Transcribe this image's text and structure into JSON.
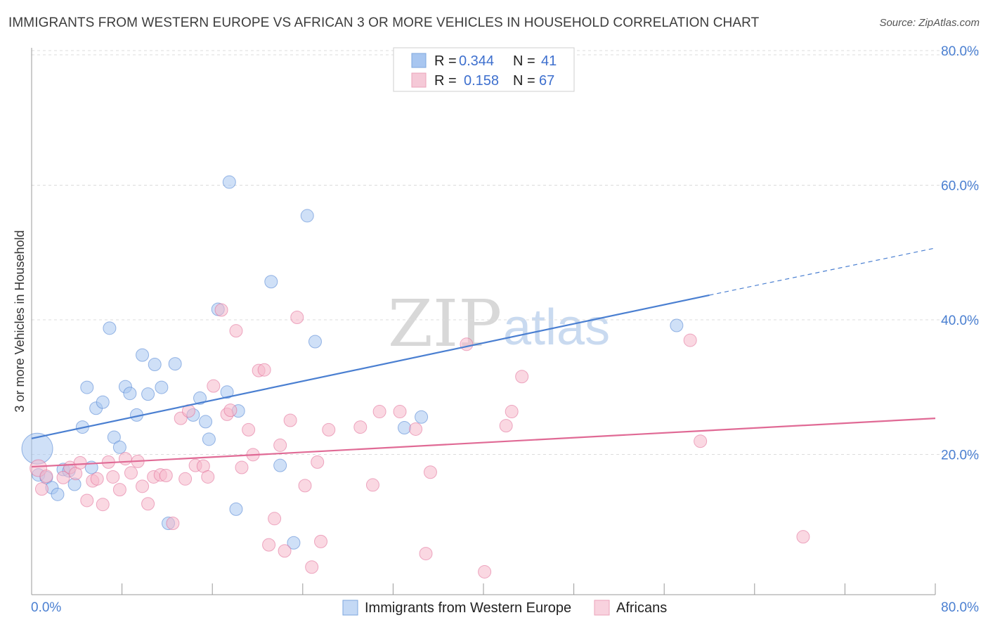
{
  "header": {
    "title": "IMMIGRANTS FROM WESTERN EUROPE VS AFRICAN 3 OR MORE VEHICLES IN HOUSEHOLD CORRELATION CHART",
    "source": "Source: ZipAtlas.com"
  },
  "watermark": {
    "zip": "ZIP",
    "atlas": "atlas"
  },
  "legend": {
    "rows": [
      {
        "r_label": "R =",
        "r_value": "0.344",
        "n_label": "N =",
        "n_value": "41",
        "color": "#a8c6f0"
      },
      {
        "r_label": "R =",
        "r_value": "0.158",
        "n_label": "N =",
        "n_value": "67",
        "color": "#f5b8cb"
      }
    ]
  },
  "bottom_legend": {
    "items": [
      {
        "label": "Immigrants from Western Europe",
        "color": "#a8c6f0"
      },
      {
        "label": "Africans",
        "color": "#f5b8cb"
      }
    ]
  },
  "chart_data": {
    "type": "scatter",
    "title": "IMMIGRANTS FROM WESTERN EUROPE VS AFRICAN 3 OR MORE VEHICLES IN HOUSEHOLD CORRELATION CHART",
    "xlabel": "",
    "ylabel": "3 or more Vehicles in Household",
    "xlim": [
      0,
      80
    ],
    "ylim": [
      0,
      80
    ],
    "x_tick_labels": [
      "0.0%",
      "80.0%"
    ],
    "y_ticks": [
      20,
      40,
      60,
      80
    ],
    "y_tick_labels": [
      "20.0%",
      "40.0%",
      "60.0%",
      "80.0%"
    ],
    "grid": true,
    "legend_position": "top-center",
    "series": [
      {
        "name": "Immigrants from Western Europe",
        "color": "#4a7fd1",
        "marker_fill": "#a8c6f0",
        "trend": {
          "x0": 0,
          "y0": 23.2,
          "x1": 60,
          "y1": 44.5,
          "dash_to_x": 80,
          "dash_to_y": 51.5
        },
        "points": [
          [
            0.5,
            21.7,
            22
          ],
          [
            0.6,
            17.8,
            9
          ],
          [
            1.3,
            17.4,
            9
          ],
          [
            1.8,
            15.9,
            9
          ],
          [
            2.3,
            14.9,
            9
          ],
          [
            2.8,
            18.6,
            9
          ],
          [
            3.3,
            18.4,
            9
          ],
          [
            3.8,
            16.4,
            9
          ],
          [
            4.5,
            24.9,
            9
          ],
          [
            4.9,
            30.8,
            9
          ],
          [
            5.3,
            18.9,
            9
          ],
          [
            5.7,
            27.7,
            9
          ],
          [
            6.3,
            28.6,
            9
          ],
          [
            6.9,
            39.6,
            9
          ],
          [
            7.3,
            23.4,
            9
          ],
          [
            7.8,
            21.9,
            9
          ],
          [
            8.3,
            30.9,
            9
          ],
          [
            8.7,
            29.9,
            9
          ],
          [
            9.3,
            26.7,
            9
          ],
          [
            9.8,
            35.6,
            9
          ],
          [
            10.3,
            29.8,
            9
          ],
          [
            10.9,
            34.2,
            9
          ],
          [
            11.5,
            30.8,
            9
          ],
          [
            12.1,
            10.6,
            9
          ],
          [
            12.7,
            34.3,
            9
          ],
          [
            14.3,
            26.7,
            9
          ],
          [
            14.9,
            29.2,
            9
          ],
          [
            15.4,
            25.7,
            9
          ],
          [
            15.7,
            23.1,
            9
          ],
          [
            16.5,
            42.4,
            9
          ],
          [
            17.3,
            30.1,
            9
          ],
          [
            17.5,
            61.3,
            9
          ],
          [
            18.3,
            27.3,
            9
          ],
          [
            18.1,
            12.7,
            9
          ],
          [
            21.2,
            46.5,
            9
          ],
          [
            22.0,
            19.2,
            9
          ],
          [
            23.2,
            7.7,
            9
          ],
          [
            24.4,
            56.3,
            9
          ],
          [
            25.1,
            37.6,
            9
          ],
          [
            33.0,
            24.8,
            9
          ],
          [
            34.5,
            26.4,
            9
          ],
          [
            57.1,
            40.0,
            9
          ]
        ]
      },
      {
        "name": "Africans",
        "color": "#e06a95",
        "marker_fill": "#f5b8cb",
        "trend": {
          "x0": 0,
          "y0": 19.0,
          "x1": 80,
          "y1": 26.2
        },
        "points": [
          [
            0.6,
            18.8,
            12
          ],
          [
            0.9,
            15.7,
            9
          ],
          [
            1.3,
            17.6,
            9
          ],
          [
            2.8,
            17.4,
            9
          ],
          [
            3.4,
            18.9,
            9
          ],
          [
            3.9,
            18.0,
            9
          ],
          [
            4.3,
            19.6,
            9
          ],
          [
            4.9,
            14.0,
            9
          ],
          [
            5.4,
            16.9,
            9
          ],
          [
            5.8,
            17.2,
            9
          ],
          [
            6.3,
            13.4,
            9
          ],
          [
            6.8,
            19.7,
            9
          ],
          [
            7.2,
            17.5,
            9
          ],
          [
            7.8,
            15.6,
            9
          ],
          [
            8.3,
            20.2,
            9
          ],
          [
            8.8,
            18.1,
            9
          ],
          [
            9.4,
            19.8,
            9
          ],
          [
            9.8,
            16.1,
            9
          ],
          [
            10.3,
            13.5,
            9
          ],
          [
            10.8,
            17.5,
            9
          ],
          [
            11.4,
            17.8,
            9
          ],
          [
            11.9,
            17.7,
            9
          ],
          [
            12.5,
            10.6,
            9
          ],
          [
            13.2,
            26.2,
            9
          ],
          [
            13.6,
            17.2,
            9
          ],
          [
            13.9,
            27.3,
            9
          ],
          [
            14.5,
            19.2,
            9
          ],
          [
            15.2,
            19.1,
            9
          ],
          [
            15.6,
            17.5,
            9
          ],
          [
            16.1,
            31.0,
            9
          ],
          [
            16.8,
            42.3,
            9
          ],
          [
            17.3,
            26.8,
            9
          ],
          [
            17.6,
            27.4,
            9
          ],
          [
            18.1,
            39.2,
            9
          ],
          [
            18.6,
            18.9,
            9
          ],
          [
            19.2,
            24.5,
            9
          ],
          [
            19.6,
            20.8,
            9
          ],
          [
            20.1,
            33.3,
            9
          ],
          [
            20.6,
            33.4,
            9
          ],
          [
            21.0,
            7.4,
            9
          ],
          [
            21.5,
            11.3,
            9
          ],
          [
            22.0,
            22.2,
            9
          ],
          [
            22.4,
            6.5,
            9
          ],
          [
            22.9,
            25.9,
            9
          ],
          [
            23.5,
            41.2,
            9
          ],
          [
            24.2,
            16.2,
            9
          ],
          [
            24.8,
            4.1,
            9
          ],
          [
            25.3,
            19.7,
            9
          ],
          [
            25.6,
            7.9,
            9
          ],
          [
            26.3,
            24.5,
            9
          ],
          [
            29.1,
            24.9,
            9
          ],
          [
            30.2,
            16.3,
            9
          ],
          [
            30.8,
            27.2,
            9
          ],
          [
            32.6,
            27.2,
            9
          ],
          [
            34.0,
            24.6,
            9
          ],
          [
            34.9,
            6.1,
            9
          ],
          [
            35.3,
            18.2,
            9
          ],
          [
            38.5,
            37.2,
            9
          ],
          [
            40.1,
            3.4,
            9
          ],
          [
            42.0,
            25.1,
            9
          ],
          [
            42.5,
            27.2,
            9
          ],
          [
            43.4,
            32.4,
            9
          ],
          [
            58.3,
            37.8,
            9
          ],
          [
            59.2,
            22.8,
            9
          ],
          [
            68.3,
            8.6,
            9
          ]
        ]
      }
    ]
  }
}
